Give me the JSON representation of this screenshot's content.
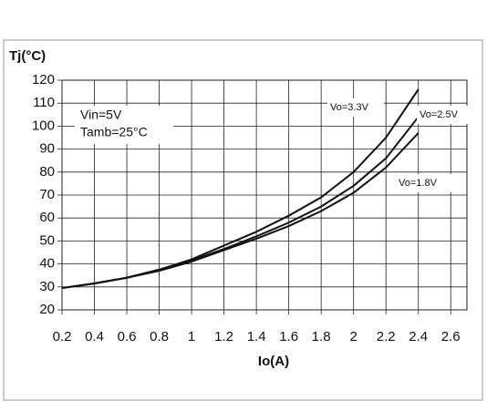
{
  "chart_data": {
    "type": "line",
    "y_label": "Tj(°C)",
    "x_label": "Io(A)",
    "annotations": [
      "Vin=5V",
      "Tamb=25°C"
    ],
    "x": [
      0.2,
      0.4,
      0.6,
      0.8,
      1.0,
      1.2,
      1.4,
      1.6,
      1.8,
      2.0,
      2.2,
      2.4
    ],
    "series": [
      {
        "name": "Vo=3.3V",
        "color": "#111111",
        "values": [
          29.5,
          31.5,
          34,
          37.5,
          42,
          48,
          54,
          61,
          69,
          80,
          95,
          116
        ]
      },
      {
        "name": "Vo=2.5V",
        "color": "#111111",
        "values": [
          29.5,
          31.5,
          34,
          37.5,
          41.5,
          46.5,
          52,
          58,
          65,
          74,
          86,
          104
        ]
      },
      {
        "name": "Vo=1.8V",
        "color": "#111111",
        "values": [
          29.5,
          31.5,
          34,
          37,
          41,
          46,
          51,
          56.5,
          63,
          71,
          82,
          97
        ]
      }
    ],
    "xlim": [
      0.2,
      2.7
    ],
    "xticks": [
      0.2,
      0.4,
      0.6,
      0.8,
      1,
      1.2,
      1.4,
      1.6,
      1.8,
      2,
      2.2,
      2.4,
      2.6
    ],
    "ylim": [
      20,
      120
    ],
    "yticks": [
      20,
      30,
      40,
      50,
      60,
      70,
      80,
      90,
      100,
      110,
      120
    ],
    "grid": true
  }
}
